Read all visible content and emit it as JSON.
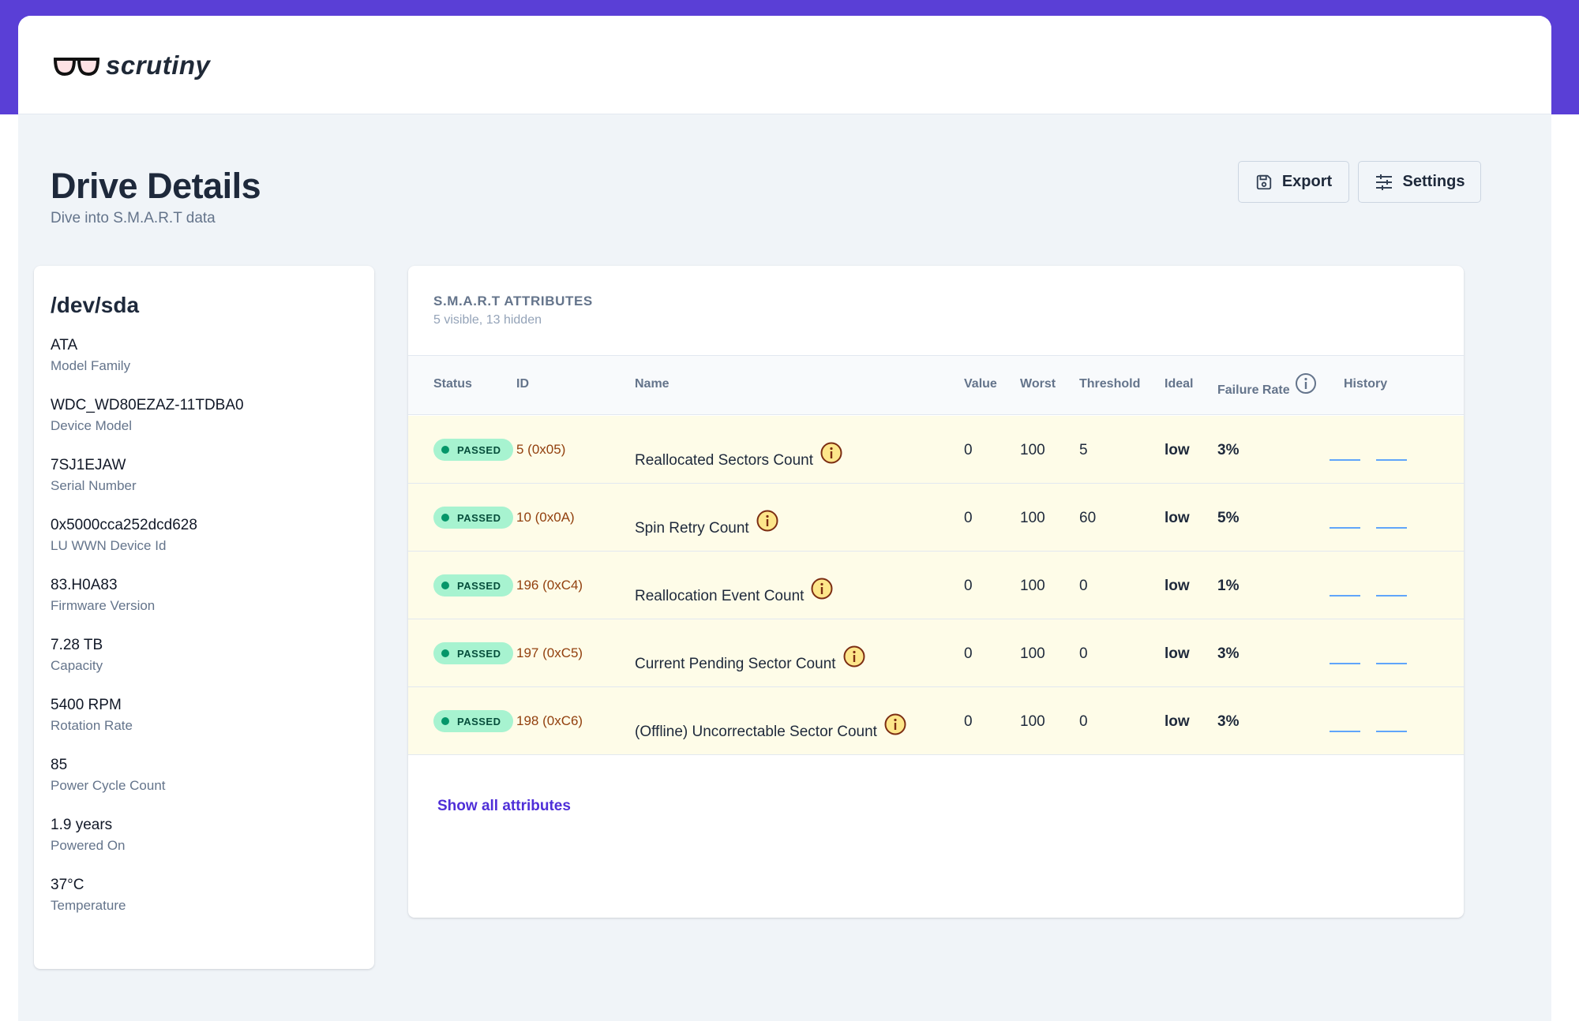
{
  "app": {
    "logo_text": "scrutiny"
  },
  "page": {
    "title": "Drive Details",
    "subtitle": "Dive into S.M.A.R.T data"
  },
  "toolbar": {
    "export_label": "Export",
    "settings_label": "Settings"
  },
  "drive": {
    "title": "/dev/sda",
    "fields": [
      {
        "value": "ATA",
        "label": "Model Family"
      },
      {
        "value": "WDC_WD80EZAZ-11TDBA0",
        "label": "Device Model"
      },
      {
        "value": "7SJ1EJAW",
        "label": "Serial Number"
      },
      {
        "value": "0x5000cca252dcd628",
        "label": "LU WWN Device Id"
      },
      {
        "value": "83.H0A83",
        "label": "Firmware Version"
      },
      {
        "value": "7.28 TB",
        "label": "Capacity"
      },
      {
        "value": "5400 RPM",
        "label": "Rotation Rate"
      },
      {
        "value": "85",
        "label": "Power Cycle Count"
      },
      {
        "value": "1.9 years",
        "label": "Powered On"
      },
      {
        "value": "37°C",
        "label": "Temperature"
      }
    ]
  },
  "attributes": {
    "title": "S.M.A.R.T ATTRIBUTES",
    "subtitle": "5 visible, 13 hidden",
    "columns": {
      "status": "Status",
      "id": "ID",
      "name": "Name",
      "value": "Value",
      "worst": "Worst",
      "threshold": "Threshold",
      "ideal": "Ideal",
      "failure_rate": "Failure Rate",
      "history": "History"
    },
    "rows": [
      {
        "status": "PASSED",
        "id": "5 (0x05)",
        "name": "Reallocated Sectors Count",
        "value": "0",
        "worst": "100",
        "threshold": "5",
        "ideal": "low",
        "failure_rate": "3%"
      },
      {
        "status": "PASSED",
        "id": "10 (0x0A)",
        "name": "Spin Retry Count",
        "value": "0",
        "worst": "100",
        "threshold": "60",
        "ideal": "low",
        "failure_rate": "5%"
      },
      {
        "status": "PASSED",
        "id": "196 (0xC4)",
        "name": "Reallocation Event Count",
        "value": "0",
        "worst": "100",
        "threshold": "0",
        "ideal": "low",
        "failure_rate": "1%"
      },
      {
        "status": "PASSED",
        "id": "197 (0xC5)",
        "name": "Current Pending Sector Count",
        "value": "0",
        "worst": "100",
        "threshold": "0",
        "ideal": "low",
        "failure_rate": "3%"
      },
      {
        "status": "PASSED",
        "id": "198 (0xC6)",
        "name": "(Offline) Uncorrectable Sector Count",
        "value": "0",
        "worst": "100",
        "threshold": "0",
        "ideal": "low",
        "failure_rate": "3%"
      }
    ],
    "show_all_label": "Show all attributes"
  },
  "icons": {
    "logo": "glasses-icon",
    "export": "save-icon",
    "settings": "sliders-icon",
    "row_info": "info-icon",
    "header_info": "info-icon"
  },
  "colors": {
    "brand": "#5a3fd6",
    "status_passed_bg": "#a7f3d0",
    "status_passed_dot": "#059669",
    "row_highlight": "#fefce8",
    "link": "#4f2fd8"
  }
}
